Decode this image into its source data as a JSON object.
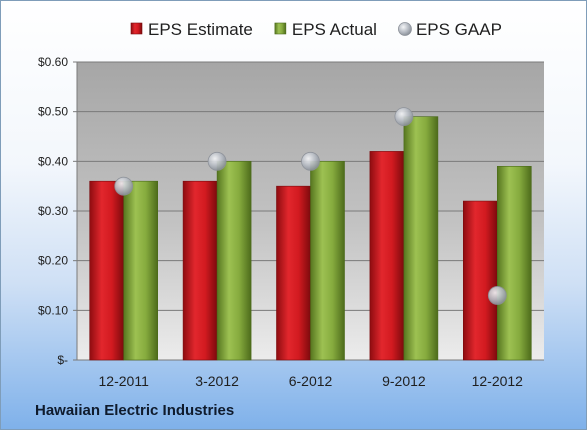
{
  "chart_data": {
    "type": "bar",
    "title": "",
    "xlabel": "",
    "ylabel": "",
    "categories": [
      "12-2011",
      "3-2012",
      "6-2012",
      "9-2012",
      "12-2012"
    ],
    "series": [
      {
        "name": "EPS Estimate",
        "kind": "bar",
        "color": "#c8161d",
        "values": [
          0.36,
          0.36,
          0.35,
          0.42,
          0.32
        ]
      },
      {
        "name": "EPS Actual",
        "kind": "bar",
        "color": "#7fa33c",
        "values": [
          0.36,
          0.4,
          0.4,
          0.49,
          0.39
        ]
      },
      {
        "name": "EPS GAAP",
        "kind": "marker",
        "color": "#b9bec6",
        "values": [
          0.35,
          0.4,
          0.4,
          0.49,
          0.13
        ]
      }
    ],
    "ylim": [
      0,
      0.6
    ],
    "yticks": [
      0,
      0.1,
      0.2,
      0.3,
      0.4,
      0.5,
      0.6
    ],
    "ytick_labels": [
      "$-",
      "$0.10",
      "$0.20",
      "$0.30",
      "$0.40",
      "$0.50",
      "$0.60"
    ],
    "grid": true,
    "legend_position": "top"
  },
  "company": "Hawaiian Electric Industries"
}
